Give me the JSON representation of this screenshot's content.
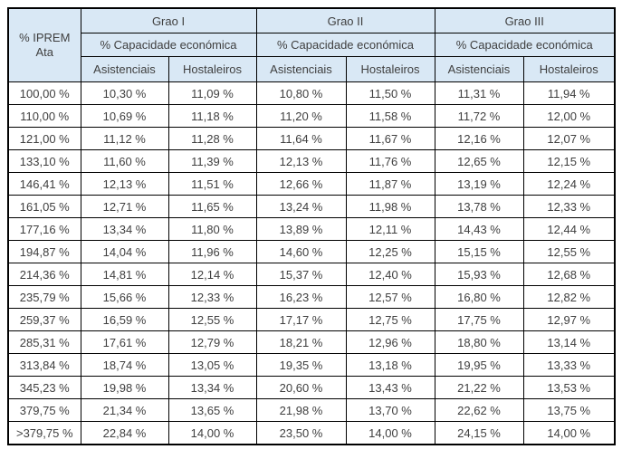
{
  "colors": {
    "header_bg": "#d9e8f5",
    "border": "#000000",
    "text": "#3f3f3f",
    "page_bg": "#ffffff"
  },
  "table": {
    "corner_header": "% IPREM Ata",
    "groups": [
      {
        "label": "Grao I",
        "sub": "% Capacidade económica",
        "cols": [
          "Asistenciais",
          "Hostaleiros"
        ]
      },
      {
        "label": "Grao II",
        "sub": "% Capacidade económica",
        "cols": [
          "Asistenciais",
          "Hostaleiros"
        ]
      },
      {
        "label": "Grao III",
        "sub": "% Capacidade económica",
        "cols": [
          "Asistenciais",
          "Hostaleiros"
        ]
      }
    ],
    "rows": [
      {
        "iprem": "100,00 %",
        "values": [
          "10,30 %",
          "11,09 %",
          "10,80 %",
          "11,50 %",
          "11,31 %",
          "11,94 %"
        ]
      },
      {
        "iprem": "110,00 %",
        "values": [
          "10,69 %",
          "11,18 %",
          "11,20 %",
          "11,58 %",
          "11,72 %",
          "12,00 %"
        ]
      },
      {
        "iprem": "121,00 %",
        "values": [
          "11,12 %",
          "11,28 %",
          "11,64 %",
          "11,67 %",
          "12,16 %",
          "12,07 %"
        ]
      },
      {
        "iprem": "133,10 %",
        "values": [
          "11,60 %",
          "11,39 %",
          "12,13 %",
          "11,76 %",
          "12,65 %",
          "12,15 %"
        ]
      },
      {
        "iprem": "146,41 %",
        "values": [
          "12,13 %",
          "11,51 %",
          "12,66 %",
          "11,87 %",
          "13,19 %",
          "12,24 %"
        ]
      },
      {
        "iprem": "161,05 %",
        "values": [
          "12,71 %",
          "11,65 %",
          "13,24 %",
          "11,98 %",
          "13,78 %",
          "12,33 %"
        ]
      },
      {
        "iprem": "177,16 %",
        "values": [
          "13,34 %",
          "11,80 %",
          "13,89 %",
          "12,11 %",
          "14,43 %",
          "12,44 %"
        ]
      },
      {
        "iprem": "194,87 %",
        "values": [
          "14,04 %",
          "11,96 %",
          "14,60 %",
          "12,25 %",
          "15,15 %",
          "12,55 %"
        ]
      },
      {
        "iprem": "214,36 %",
        "values": [
          "14,81 %",
          "12,14 %",
          "15,37 %",
          "12,40 %",
          "15,93 %",
          "12,68 %"
        ]
      },
      {
        "iprem": "235,79 %",
        "values": [
          "15,66 %",
          "12,33 %",
          "16,23 %",
          "12,57 %",
          "16,80 %",
          "12,82 %"
        ]
      },
      {
        "iprem": "259,37 %",
        "values": [
          "16,59 %",
          "12,55 %",
          "17,17 %",
          "12,75 %",
          "17,75 %",
          "12,97 %"
        ]
      },
      {
        "iprem": "285,31 %",
        "values": [
          "17,61 %",
          "12,79 %",
          "18,21 %",
          "12,96 %",
          "18,80 %",
          "13,14 %"
        ]
      },
      {
        "iprem": "313,84 %",
        "values": [
          "18,74 %",
          "13,05 %",
          "19,35 %",
          "13,18 %",
          "19,95 %",
          "13,33 %"
        ]
      },
      {
        "iprem": "345,23 %",
        "values": [
          "19,98 %",
          "13,34 %",
          "20,60 %",
          "13,43 %",
          "21,22 %",
          "13,53 %"
        ]
      },
      {
        "iprem": "379,75 %",
        "values": [
          "21,34 %",
          "13,65 %",
          "21,98 %",
          "13,70 %",
          "22,62 %",
          "13,75 %"
        ]
      },
      {
        "iprem": ">379,75 %",
        "values": [
          "22,84 %",
          "14,00 %",
          "23,50 %",
          "14,00 %",
          "24,15 %",
          "14,00 %"
        ]
      }
    ]
  }
}
